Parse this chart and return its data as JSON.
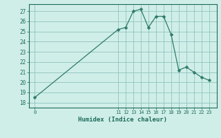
{
  "x": [
    0,
    11,
    12,
    13,
    14,
    15,
    16,
    17,
    18,
    19,
    20,
    21,
    22,
    23
  ],
  "y": [
    18.5,
    25.2,
    25.4,
    27.0,
    27.2,
    25.4,
    26.5,
    26.5,
    24.7,
    21.2,
    21.5,
    21.0,
    20.5,
    20.2
  ],
  "line_color": "#2d7a6a",
  "marker_color": "#2d7a6a",
  "bg_color": "#d0eee8",
  "grid_color_minor": "#b8ddd8",
  "grid_color_major": "#90c4be",
  "axis_color": "#1a6b5a",
  "xlabel": "Humidex (Indice chaleur)",
  "ylabel_ticks": [
    18,
    19,
    20,
    21,
    22,
    23,
    24,
    25,
    26,
    27
  ],
  "xtick_labels": [
    "0",
    "11",
    "12",
    "13",
    "14",
    "15",
    "16",
    "17",
    "18",
    "19",
    "20",
    "21",
    "22",
    "23"
  ],
  "xtick_positions": [
    0,
    11,
    12,
    13,
    14,
    15,
    16,
    17,
    18,
    19,
    20,
    21,
    22,
    23
  ],
  "ylim": [
    17.5,
    27.7
  ],
  "xlim": [
    -0.8,
    24.0
  ]
}
